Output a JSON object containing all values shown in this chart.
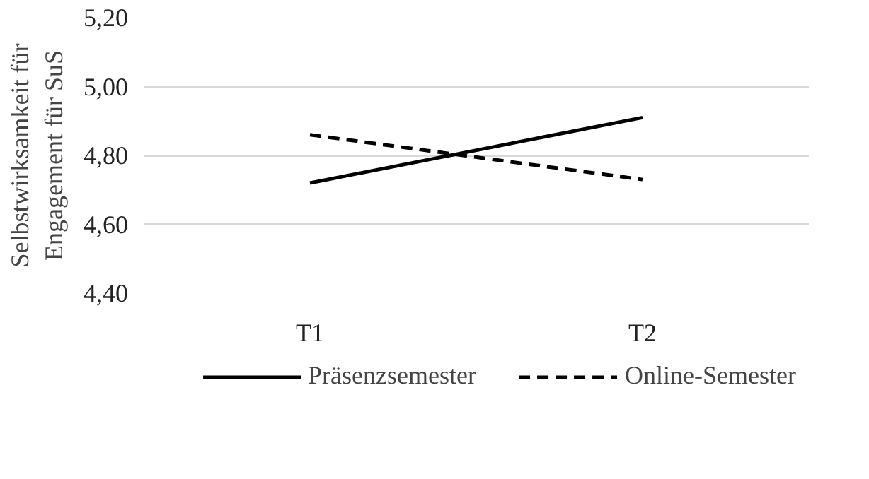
{
  "chart_data": {
    "type": "line",
    "ylabel": "Selbstwirksamkeit für\nEngagement für SuS",
    "categories": [
      "T1",
      "T2"
    ],
    "series": [
      {
        "name": "Präsenzsemester",
        "color": "#000000",
        "values": [
          4.72,
          4.91
        ],
        "line_style": "solid"
      },
      {
        "name": "Online-Semester",
        "color": "#000000",
        "values": [
          4.86,
          4.73
        ],
        "line_style": "dashed"
      }
    ],
    "ylim": [
      4.4,
      5.2
    ],
    "yticks": [
      {
        "value": 4.4,
        "label": "4,40"
      },
      {
        "value": 4.6,
        "label": "4,60"
      },
      {
        "value": 4.8,
        "label": "4,80"
      },
      {
        "value": 5.0,
        "label": "5,00"
      },
      {
        "value": 5.2,
        "label": "5,20"
      }
    ],
    "grid": "y",
    "legend": "bottom",
    "marker": "none"
  }
}
